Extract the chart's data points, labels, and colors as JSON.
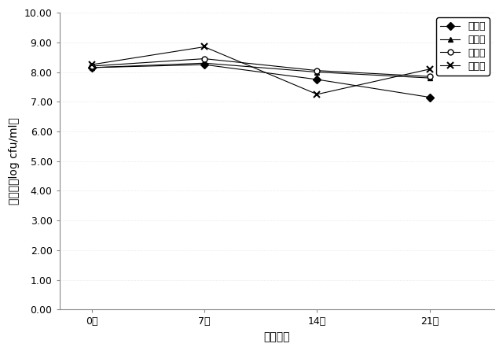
{
  "x_values": [
    0,
    7,
    14,
    21
  ],
  "x_labels": [
    "0日",
    "7日",
    "14日",
    "21日"
  ],
  "series": [
    {
      "label": "飲料１",
      "values": [
        8.15,
        8.25,
        7.75,
        7.15
      ],
      "color": "#000000",
      "marker": "D",
      "markersize": 5,
      "linestyle": "-",
      "markerfacecolor": "black",
      "markeredgecolor": "black"
    },
    {
      "label": "飲料２",
      "values": [
        8.15,
        8.3,
        8.0,
        7.8
      ],
      "color": "#000000",
      "marker": "^",
      "markersize": 5,
      "linestyle": "-",
      "markerfacecolor": "black",
      "markeredgecolor": "black"
    },
    {
      "label": "飲料３",
      "values": [
        8.2,
        8.45,
        8.05,
        7.85
      ],
      "color": "#000000",
      "marker": "o",
      "markersize": 5,
      "linestyle": "-",
      "markerfacecolor": "white",
      "markeredgecolor": "black"
    },
    {
      "label": "飲料４",
      "values": [
        8.25,
        8.85,
        7.25,
        8.1
      ],
      "color": "#000000",
      "marker": "x",
      "markersize": 6,
      "linestyle": "-",
      "markerfacecolor": "black",
      "markeredgecolor": "black"
    }
  ],
  "ylim": [
    0.0,
    10.0
  ],
  "yticks": [
    0.0,
    1.0,
    2.0,
    3.0,
    4.0,
    5.0,
    6.0,
    7.0,
    8.0,
    9.0,
    10.0
  ],
  "ytick_labels": [
    "0.00",
    "1.00",
    "2.00",
    "3.00",
    "4.00",
    "5.00",
    "6.00",
    "7.00",
    "8.00",
    "9.00",
    "10.00"
  ],
  "xlabel": "保存日数",
  "ylabel": "生菌数（log cfu/ml）",
  "background_color": "#ffffff",
  "plot_bg_color": "#ffffff",
  "grid_color": "#aaaaaa",
  "legend_loc": "upper right",
  "fontsize_axis": 10,
  "fontsize_tick": 9,
  "fontsize_legend": 9,
  "xlim": [
    -2,
    25
  ]
}
